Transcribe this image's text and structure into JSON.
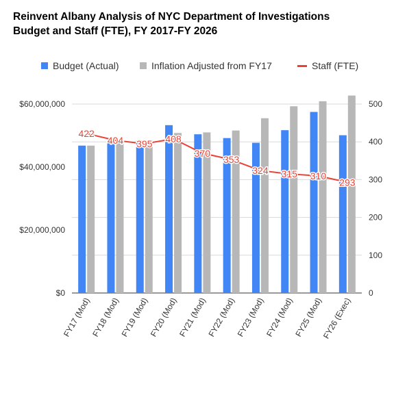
{
  "title_line1": "Reinvent Albany Analysis of NYC Department of Investigations",
  "title_line2": "Budget and Staff (FTE), FY 2017-FY 2026",
  "legend": {
    "position": "top",
    "items": [
      {
        "label": "Budget (Actual)",
        "color": "#4285f4",
        "kind": "box"
      },
      {
        "label": "Inflation Adjusted from FY17",
        "color": "#b7b7b7",
        "kind": "box"
      },
      {
        "label": "Staff (FTE)",
        "color": "#ea4335",
        "kind": "line"
      }
    ]
  },
  "chart_data": {
    "type": "bar",
    "title": "Reinvent Albany Analysis of NYC Department of Investigations Budget and Staff (FTE), FY 2017-FY 2026",
    "categories": [
      "FY17 (Mod)",
      "FY18 (Mod)",
      "FY19 (Mod)",
      "FY20 (Mod)",
      "FY21 (Mod)",
      "FY22 (Mod)",
      "FY23 (Mod)",
      "FY24 (Mod)",
      "FY25 (Mod)",
      "FY26 (Exec)"
    ],
    "series": [
      {
        "name": "Budget (Actual)",
        "type": "bar",
        "axis": "left",
        "color": "#4285f4",
        "values": [
          46800000,
          48200000,
          48400000,
          53300000,
          50400000,
          49200000,
          47700000,
          51700000,
          57500000,
          50100000
        ]
      },
      {
        "name": "Inflation Adjusted from FY17",
        "type": "bar",
        "axis": "left",
        "color": "#b7b7b7",
        "values": [
          46800000,
          47900000,
          48500000,
          50800000,
          51000000,
          51600000,
          55500000,
          59300000,
          60900000,
          62700000
        ]
      },
      {
        "name": "Staff (FTE)",
        "type": "line",
        "axis": "right",
        "color": "#ea4335",
        "values": [
          422,
          404,
          395,
          408,
          370,
          353,
          324,
          315,
          310,
          293
        ]
      }
    ],
    "y_left": {
      "min": 0,
      "max": 60000000,
      "ticks": [
        "$0",
        "$20,000,000",
        "$40,000,000",
        "$60,000,000"
      ],
      "tick_values": [
        0,
        20000000,
        40000000,
        60000000
      ]
    },
    "y_right": {
      "min": 0,
      "max": 500,
      "ticks": [
        "0",
        "100",
        "200",
        "300",
        "400",
        "500"
      ],
      "tick_values": [
        0,
        100,
        200,
        300,
        400,
        500
      ]
    },
    "grid": true
  }
}
